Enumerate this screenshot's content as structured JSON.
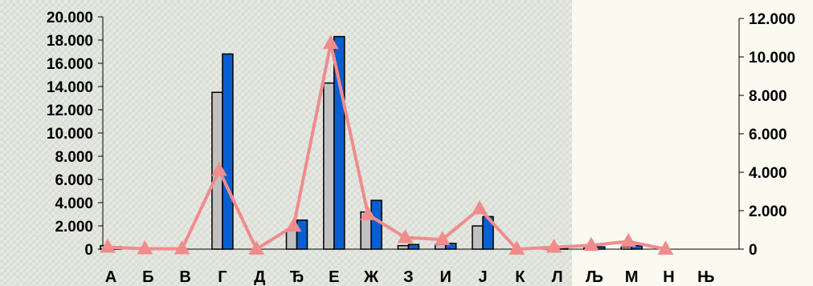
{
  "chart_data": {
    "type": "bar",
    "categories": [
      "А",
      "Б",
      "В",
      "Г",
      "Д",
      "Ђ",
      "Е",
      "Ж",
      "З",
      "И",
      "Ј",
      "К",
      "Л",
      "Љ",
      "М",
      "Н",
      "Њ"
    ],
    "series": [
      {
        "values": [
          300,
          0,
          0,
          13500,
          0,
          1700,
          14300,
          3200,
          300,
          400,
          2000,
          0,
          0,
          100,
          200,
          0,
          0
        ],
        "color": "#c0c0c0",
        "axis": "left"
      },
      {
        "values": [
          200,
          0,
          0,
          16800,
          0,
          2500,
          18300,
          4200,
          400,
          500,
          2800,
          0,
          100,
          200,
          300,
          0,
          0
        ],
        "color": "#0a5fd0",
        "axis": "left"
      },
      {
        "type": "line",
        "values": [
          100,
          20,
          20,
          4100,
          0,
          1200,
          10700,
          1800,
          600,
          500,
          2100,
          0,
          100,
          200,
          400,
          0,
          null
        ],
        "color": "#f08c8c",
        "marker": "triangle",
        "axis": "right"
      }
    ],
    "y_left": {
      "range": [
        0,
        20000
      ],
      "ticks": [
        "0",
        "2.000",
        "4.000",
        "6.000",
        "8.000",
        "10.000",
        "12.000",
        "14.000",
        "16.000",
        "18.000",
        "20.000"
      ]
    },
    "y_right": {
      "range": [
        0,
        12000
      ],
      "ticks": [
        "0",
        "2.000",
        "4.000",
        "6.000",
        "8.000",
        "10.000",
        "12.000"
      ]
    },
    "grid": false,
    "legend": "none"
  }
}
